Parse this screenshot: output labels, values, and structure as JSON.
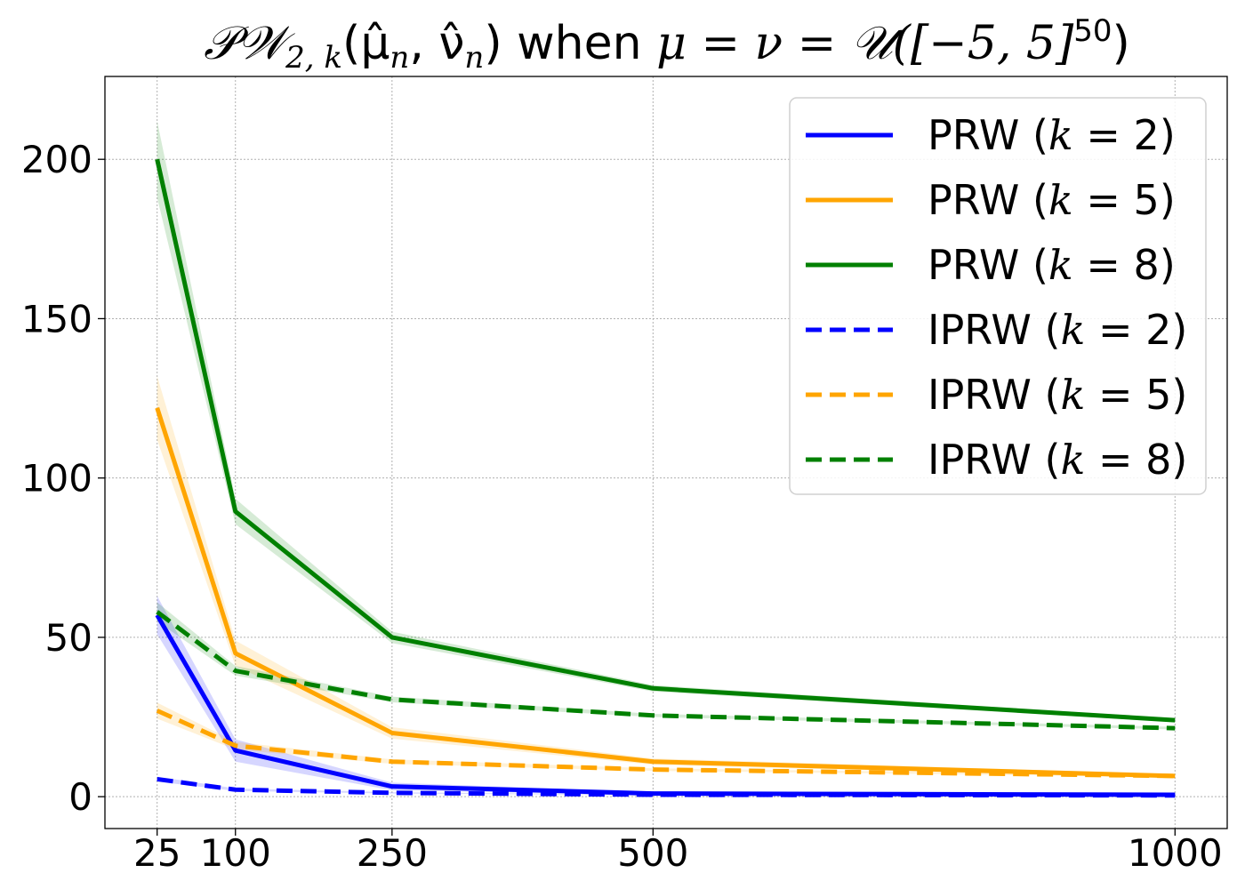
{
  "chart_data": {
    "type": "line",
    "title": {
      "main": "𝒫𝒲",
      "sub": "2, k",
      "args": "(μ̂",
      "arg1_sub": "n",
      "comma": ", ν̂",
      "arg2_sub": "n",
      "close": ")",
      "when": " when ",
      "cond": "μ = ν = 𝒰([−5, 5]",
      "sup": "50",
      "end": ")"
    },
    "x": [
      25,
      100,
      250,
      500,
      1000
    ],
    "x_ticks": [
      25,
      100,
      250,
      500,
      1000
    ],
    "y_ticks": [
      0,
      50,
      100,
      150,
      200
    ],
    "xlim": [
      -25,
      1050
    ],
    "ylim": [
      -10,
      226
    ],
    "grid": true,
    "legend_position": "top-right",
    "series": [
      {
        "name": "PRW (k = 2)",
        "label_prefix": "PRW (",
        "label_var": "k",
        "label_rest": " = 2)",
        "color": "#0000ff",
        "dash": false,
        "values": [
          57,
          14.5,
          3.2,
          1.0,
          0.6
        ],
        "band": [
          6,
          3.5,
          1.2,
          0.4,
          0.3
        ]
      },
      {
        "name": "PRW (k = 5)",
        "label_prefix": "PRW (",
        "label_var": "k",
        "label_rest": " = 5)",
        "color": "#ffa500",
        "dash": false,
        "values": [
          122,
          45,
          20,
          11,
          6.5
        ],
        "band": [
          10,
          4,
          1.8,
          1.0,
          0.6
        ]
      },
      {
        "name": "PRW (k = 8)",
        "label_prefix": "PRW (",
        "label_var": "k",
        "label_rest": " = 8)",
        "color": "#008000",
        "dash": false,
        "values": [
          200,
          89.5,
          50,
          34,
          24
        ],
        "band": [
          12,
          4,
          1.8,
          1.0,
          0.6
        ]
      },
      {
        "name": "IPRW (k = 2)",
        "label_prefix": "IPRW (",
        "label_var": "k",
        "label_rest": " = 2)",
        "color": "#0000ff",
        "dash": true,
        "values": [
          5.5,
          2.2,
          1.2,
          0.6,
          0.4
        ],
        "band": [
          0.8,
          0.4,
          0.2,
          0.1,
          0.1
        ]
      },
      {
        "name": "IPRW (k = 5)",
        "label_prefix": "IPRW (",
        "label_var": "k",
        "label_rest": " = 5)",
        "color": "#ffa500",
        "dash": true,
        "values": [
          27,
          16,
          11,
          8.5,
          6.5
        ],
        "band": [
          2.5,
          1.2,
          0.7,
          0.4,
          0.3
        ]
      },
      {
        "name": "IPRW (k = 8)",
        "label_prefix": "IPRW (",
        "label_var": "k",
        "label_rest": " = 8)",
        "color": "#008000",
        "dash": true,
        "values": [
          58,
          39.5,
          30.5,
          25.5,
          21.5
        ],
        "band": [
          3,
          1.5,
          0.9,
          0.5,
          0.4
        ]
      }
    ]
  }
}
